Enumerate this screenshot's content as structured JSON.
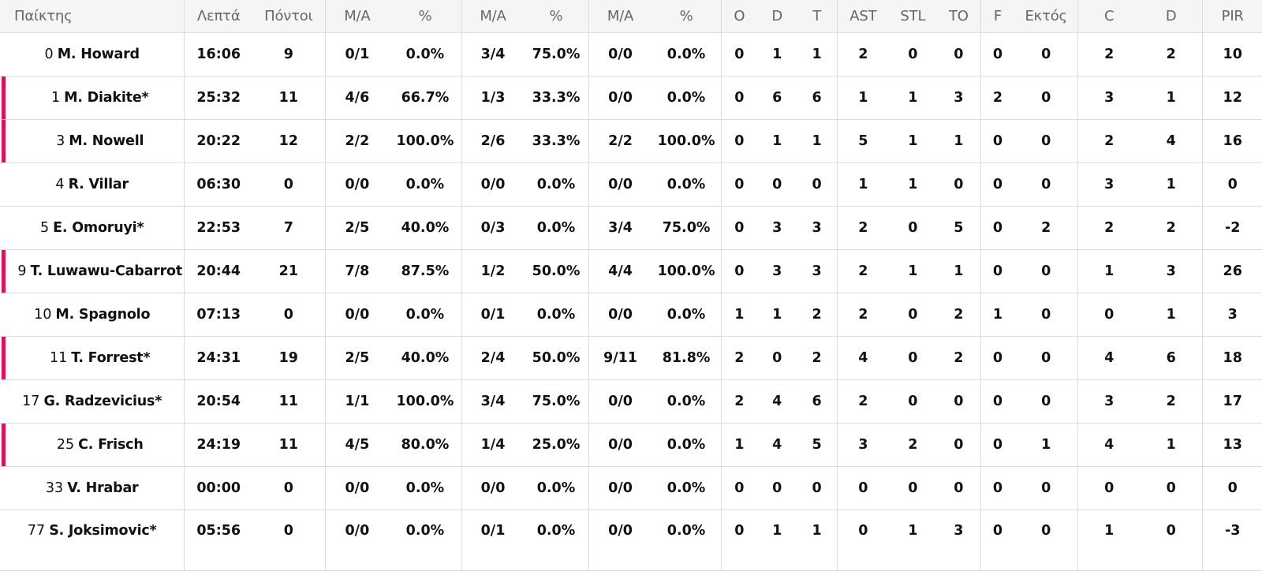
{
  "header": {
    "player": "Παίκτης",
    "minutes": "Λεπτά",
    "points": "Πόντοι",
    "fg2_ma": "Μ/Α",
    "fg2_pct": "%",
    "fg3_ma": "Μ/Α",
    "fg3_pct": "%",
    "ft_ma": "Μ/Α",
    "ft_pct": "%",
    "reb_o": "O",
    "reb_d": "D",
    "reb_t": "T",
    "ast": "AST",
    "stl": "STL",
    "to": "TO",
    "fouls": "F",
    "fouls_out": "Εκτός",
    "blk_c": "C",
    "blk_d": "D",
    "pir": "PIR"
  },
  "accent_color": "#e2105a",
  "rows": [
    {
      "num": "0",
      "name": "M. Howard",
      "marked": false,
      "min": "16:06",
      "pts": "9",
      "fg2": "0/1",
      "fg2p": "0.0%",
      "fg3": "3/4",
      "fg3p": "75.0%",
      "ft": "0/0",
      "ftp": "0.0%",
      "o": "0",
      "d": "1",
      "t": "1",
      "ast": "2",
      "stl": "0",
      "to": "0",
      "f": "0",
      "fo": "0",
      "c": "2",
      "dd": "2",
      "pir": "10"
    },
    {
      "num": "1",
      "name": "M. Diakite*",
      "marked": true,
      "min": "25:32",
      "pts": "11",
      "fg2": "4/6",
      "fg2p": "66.7%",
      "fg3": "1/3",
      "fg3p": "33.3%",
      "ft": "0/0",
      "ftp": "0.0%",
      "o": "0",
      "d": "6",
      "t": "6",
      "ast": "1",
      "stl": "1",
      "to": "3",
      "f": "2",
      "fo": "0",
      "c": "3",
      "dd": "1",
      "pir": "12"
    },
    {
      "num": "3",
      "name": "M. Nowell",
      "marked": true,
      "min": "20:22",
      "pts": "12",
      "fg2": "2/2",
      "fg2p": "100.0%",
      "fg3": "2/6",
      "fg3p": "33.3%",
      "ft": "2/2",
      "ftp": "100.0%",
      "o": "0",
      "d": "1",
      "t": "1",
      "ast": "5",
      "stl": "1",
      "to": "1",
      "f": "0",
      "fo": "0",
      "c": "2",
      "dd": "4",
      "pir": "16"
    },
    {
      "num": "4",
      "name": "R. Villar",
      "marked": false,
      "min": "06:30",
      "pts": "0",
      "fg2": "0/0",
      "fg2p": "0.0%",
      "fg3": "0/0",
      "fg3p": "0.0%",
      "ft": "0/0",
      "ftp": "0.0%",
      "o": "0",
      "d": "0",
      "t": "0",
      "ast": "1",
      "stl": "1",
      "to": "0",
      "f": "0",
      "fo": "0",
      "c": "3",
      "dd": "1",
      "pir": "0"
    },
    {
      "num": "5",
      "name": "E. Omoruyi*",
      "marked": false,
      "min": "22:53",
      "pts": "7",
      "fg2": "2/5",
      "fg2p": "40.0%",
      "fg3": "0/3",
      "fg3p": "0.0%",
      "ft": "3/4",
      "ftp": "75.0%",
      "o": "0",
      "d": "3",
      "t": "3",
      "ast": "2",
      "stl": "0",
      "to": "5",
      "f": "0",
      "fo": "2",
      "c": "2",
      "dd": "2",
      "pir": "-2"
    },
    {
      "num": "9",
      "name": "T. Luwawu-Cabarrot",
      "marked": true,
      "min": "20:44",
      "pts": "21",
      "fg2": "7/8",
      "fg2p": "87.5%",
      "fg3": "1/2",
      "fg3p": "50.0%",
      "ft": "4/4",
      "ftp": "100.0%",
      "o": "0",
      "d": "3",
      "t": "3",
      "ast": "2",
      "stl": "1",
      "to": "1",
      "f": "0",
      "fo": "0",
      "c": "1",
      "dd": "3",
      "pir": "26"
    },
    {
      "num": "10",
      "name": "M. Spagnolo",
      "marked": false,
      "min": "07:13",
      "pts": "0",
      "fg2": "0/0",
      "fg2p": "0.0%",
      "fg3": "0/1",
      "fg3p": "0.0%",
      "ft": "0/0",
      "ftp": "0.0%",
      "o": "1",
      "d": "1",
      "t": "2",
      "ast": "2",
      "stl": "0",
      "to": "2",
      "f": "1",
      "fo": "0",
      "c": "0",
      "dd": "1",
      "pir": "3"
    },
    {
      "num": "11",
      "name": "T. Forrest*",
      "marked": true,
      "min": "24:31",
      "pts": "19",
      "fg2": "2/5",
      "fg2p": "40.0%",
      "fg3": "2/4",
      "fg3p": "50.0%",
      "ft": "9/11",
      "ftp": "81.8%",
      "o": "2",
      "d": "0",
      "t": "2",
      "ast": "4",
      "stl": "0",
      "to": "2",
      "f": "0",
      "fo": "0",
      "c": "4",
      "dd": "6",
      "pir": "18"
    },
    {
      "num": "17",
      "name": "G. Radzevicius*",
      "marked": false,
      "min": "20:54",
      "pts": "11",
      "fg2": "1/1",
      "fg2p": "100.0%",
      "fg3": "3/4",
      "fg3p": "75.0%",
      "ft": "0/0",
      "ftp": "0.0%",
      "o": "2",
      "d": "4",
      "t": "6",
      "ast": "2",
      "stl": "0",
      "to": "0",
      "f": "0",
      "fo": "0",
      "c": "3",
      "dd": "2",
      "pir": "17"
    },
    {
      "num": "25",
      "name": "C. Frisch",
      "marked": true,
      "min": "24:19",
      "pts": "11",
      "fg2": "4/5",
      "fg2p": "80.0%",
      "fg3": "1/4",
      "fg3p": "25.0%",
      "ft": "0/0",
      "ftp": "0.0%",
      "o": "1",
      "d": "4",
      "t": "5",
      "ast": "3",
      "stl": "2",
      "to": "0",
      "f": "0",
      "fo": "1",
      "c": "4",
      "dd": "1",
      "pir": "13"
    },
    {
      "num": "33",
      "name": "V. Hrabar",
      "marked": false,
      "min": "00:00",
      "pts": "0",
      "fg2": "0/0",
      "fg2p": "0.0%",
      "fg3": "0/0",
      "fg3p": "0.0%",
      "ft": "0/0",
      "ftp": "0.0%",
      "o": "0",
      "d": "0",
      "t": "0",
      "ast": "0",
      "stl": "0",
      "to": "0",
      "f": "0",
      "fo": "0",
      "c": "0",
      "dd": "0",
      "pir": "0"
    },
    {
      "num": "77",
      "name": "S. Joksimovic*",
      "marked": false,
      "min": "05:56",
      "pts": "0",
      "fg2": "0/0",
      "fg2p": "0.0%",
      "fg3": "0/1",
      "fg3p": "0.0%",
      "ft": "0/0",
      "ftp": "0.0%",
      "o": "0",
      "d": "1",
      "t": "1",
      "ast": "0",
      "stl": "1",
      "to": "3",
      "f": "0",
      "fo": "0",
      "c": "1",
      "dd": "0",
      "pir": "-3"
    }
  ]
}
